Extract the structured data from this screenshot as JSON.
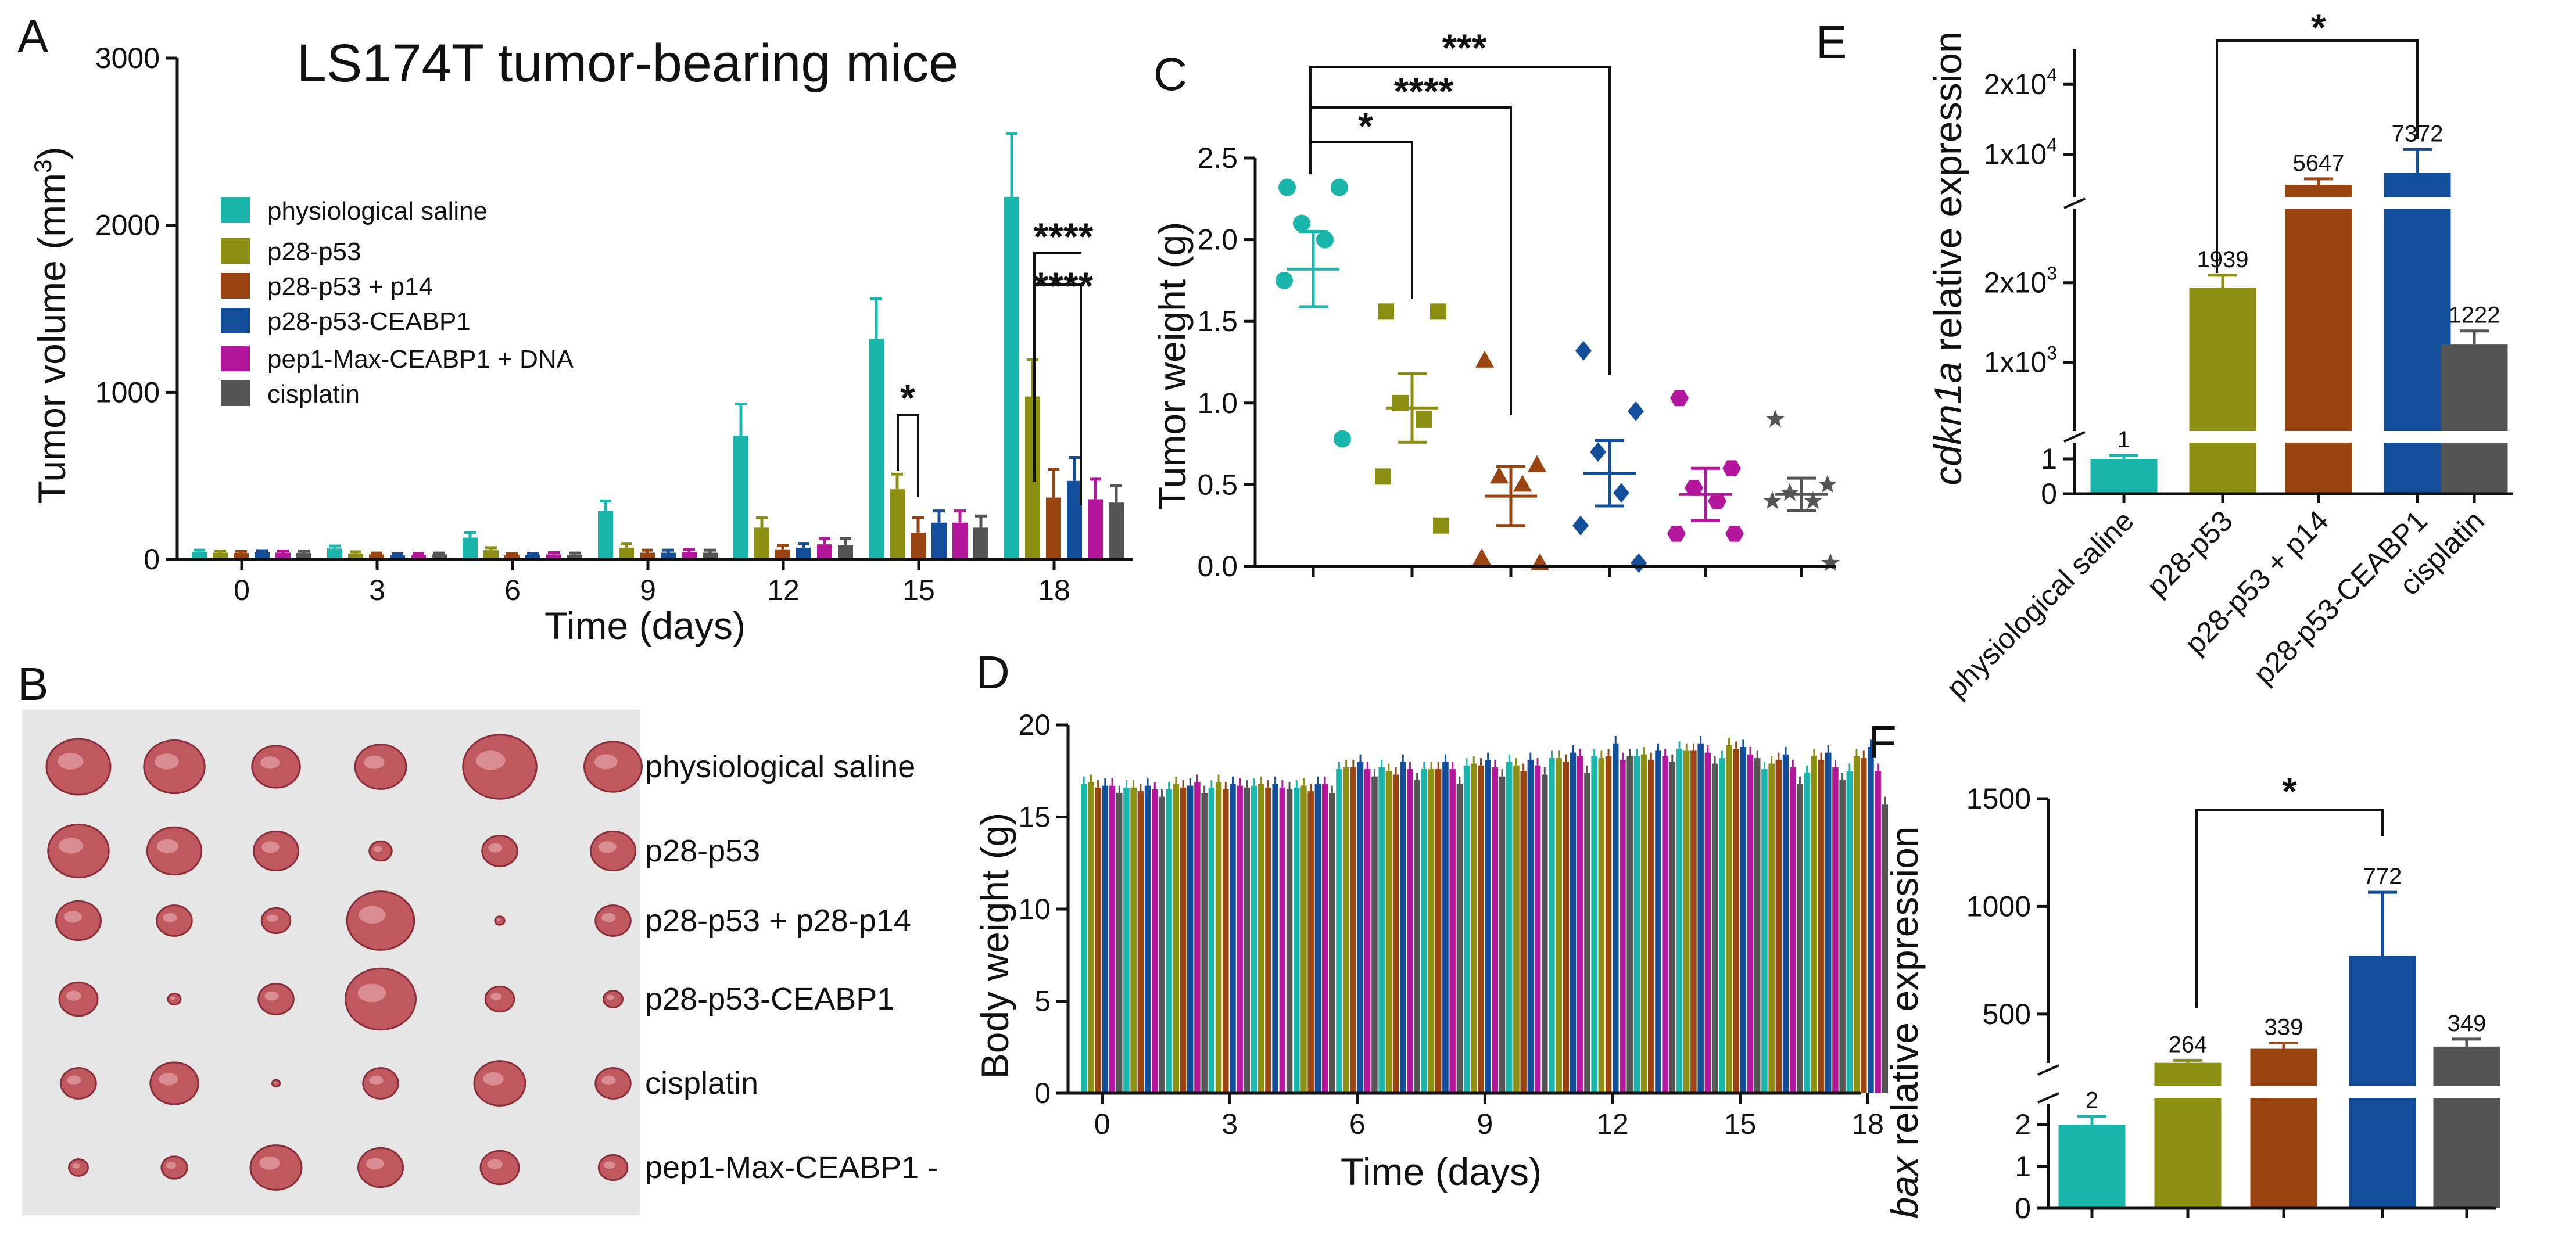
{
  "colors": {
    "saline": "#1ab6ab",
    "p28p53": "#8c8f12",
    "p28p53p14": "#9a4412",
    "ceabp1": "#124e9a",
    "pep1": "#b4169c",
    "cisplatin": "#555555"
  },
  "chart_data": [
    {
      "panel": "A",
      "type": "bar",
      "title": "LS174T tumor-bearing mice",
      "xlabel": "Time (days)",
      "ylabel": "Tumor volume (mm",
      "ylabel_sup": "3",
      "ylabel_tail": ")",
      "ylim": [
        0,
        3000
      ],
      "yticks": [
        "0",
        "1000",
        "2000",
        "3000"
      ],
      "categories": [
        "0",
        "3",
        "6",
        "9",
        "12",
        "15",
        "18"
      ],
      "series": [
        {
          "name": "physiological saline",
          "color_key": "saline",
          "values": [
            45,
            65,
            130,
            290,
            740,
            1320,
            2170
          ],
          "errors": [
            10,
            15,
            30,
            60,
            190,
            240,
            380
          ]
        },
        {
          "name": "p28-p53",
          "color_key": "p28p53",
          "values": [
            40,
            35,
            55,
            70,
            190,
            420,
            975
          ],
          "errors": [
            10,
            10,
            15,
            25,
            60,
            90,
            220
          ]
        },
        {
          "name": "p28-p53 + p14",
          "color_key": "p28p53p14",
          "values": [
            38,
            30,
            25,
            40,
            60,
            160,
            370
          ],
          "errors": [
            10,
            8,
            10,
            15,
            25,
            90,
            170
          ]
        },
        {
          "name": "p28-p53-CEABP1",
          "color_key": "ceabp1",
          "values": [
            42,
            25,
            25,
            40,
            70,
            220,
            470
          ],
          "errors": [
            10,
            8,
            10,
            15,
            25,
            70,
            140
          ]
        },
        {
          "name": "pep1-Max-CEABP1 + DNA",
          "color_key": "pep1",
          "values": [
            40,
            28,
            30,
            45,
            90,
            220,
            360
          ],
          "errors": [
            10,
            8,
            10,
            15,
            35,
            70,
            120
          ]
        },
        {
          "name": "cisplatin",
          "color_key": "cisplatin",
          "values": [
            38,
            30,
            28,
            40,
            85,
            190,
            340
          ],
          "errors": [
            10,
            8,
            10,
            15,
            40,
            70,
            100
          ]
        }
      ],
      "significance": [
        "*",
        "****",
        "****"
      ]
    },
    {
      "panel": "C",
      "type": "scatter",
      "ylabel": "Tumor weight (g)",
      "ylim": [
        0,
        2.5
      ],
      "yticks": [
        "0.0",
        "0.5",
        "1.0",
        "1.5",
        "2.0",
        "2.5"
      ],
      "groups": [
        {
          "name": "physiological saline",
          "color_key": "saline",
          "marker": "circle",
          "points": [
            2.32,
            2.32,
            2.1,
            2.0,
            1.75,
            0.78
          ],
          "mean": 1.82,
          "sem": 0.23
        },
        {
          "name": "p28-p53",
          "color_key": "p28p53",
          "marker": "square",
          "points": [
            1.56,
            1.56,
            1.0,
            0.9,
            0.55,
            0.25
          ],
          "mean": 0.97,
          "sem": 0.21
        },
        {
          "name": "p28-p53 + p14",
          "color_key": "p28p53p14",
          "marker": "triangle",
          "points": [
            1.26,
            0.62,
            0.55,
            0.5,
            0.05,
            0.02
          ],
          "mean": 0.43,
          "sem": 0.18
        },
        {
          "name": "p28-p53-CEABP1",
          "color_key": "ceabp1",
          "marker": "diamond",
          "points": [
            1.32,
            0.95,
            0.7,
            0.45,
            0.25,
            0.02
          ],
          "mean": 0.57,
          "sem": 0.2
        },
        {
          "name": "pep1-Max-CEABP1 + DNA",
          "color_key": "pep1",
          "marker": "hexagon",
          "points": [
            1.03,
            0.6,
            0.48,
            0.4,
            0.2,
            0.2
          ],
          "mean": 0.44,
          "sem": 0.16
        },
        {
          "name": "cisplatin",
          "color_key": "cisplatin",
          "marker": "star",
          "points": [
            0.9,
            0.5,
            0.45,
            0.4,
            0.4,
            0.02
          ],
          "mean": 0.44,
          "sem": 0.1
        }
      ],
      "significance": [
        "*",
        "****",
        "***"
      ]
    },
    {
      "panel": "D",
      "type": "bar",
      "xlabel": "Time (days)",
      "ylabel": "Body weight (g)",
      "ylim": [
        0,
        20
      ],
      "yticks": [
        "0",
        "5",
        "10",
        "15",
        "20"
      ],
      "categories": [
        "0",
        "1",
        "2",
        "3",
        "4",
        "5",
        "6",
        "7",
        "8",
        "9",
        "10",
        "11",
        "12",
        "13",
        "14",
        "15",
        "16",
        "17",
        "18"
      ],
      "tick_labels": [
        "0",
        "3",
        "6",
        "9",
        "12",
        "15",
        "18"
      ],
      "series": [
        {
          "name": "physiological saline",
          "color_key": "saline",
          "values": [
            16.8,
            16.6,
            16.5,
            16.6,
            16.7,
            16.6,
            17.6,
            17.7,
            17.6,
            17.8,
            18.0,
            18.2,
            18.3,
            18.3,
            18.7,
            18.2,
            17.6,
            17.4,
            17.5
          ]
        },
        {
          "name": "p28-p53",
          "color_key": "p28p53",
          "values": [
            16.9,
            16.6,
            16.8,
            16.9,
            16.8,
            16.7,
            17.7,
            17.5,
            17.6,
            17.9,
            17.8,
            18.2,
            18.2,
            18.4,
            18.6,
            18.9,
            17.9,
            18.3,
            18.3
          ]
        },
        {
          "name": "p28-p53 + p14",
          "color_key": "p28p53p14",
          "values": [
            16.6,
            16.4,
            16.6,
            16.5,
            16.6,
            16.4,
            17.7,
            17.3,
            17.6,
            17.8,
            17.5,
            18.0,
            18.3,
            18.1,
            18.6,
            18.7,
            18.1,
            18.1,
            18.2
          ]
        },
        {
          "name": "p28-p53-CEABP1",
          "color_key": "ceabp1",
          "values": [
            16.7,
            16.7,
            16.7,
            16.8,
            16.8,
            16.8,
            18.0,
            18.0,
            18.0,
            18.1,
            18.1,
            18.5,
            19.0,
            18.6,
            19.0,
            18.8,
            18.4,
            18.5,
            18.8
          ]
        },
        {
          "name": "pep1-Max-CEABP1 + DNA",
          "color_key": "pep1",
          "values": [
            16.7,
            16.5,
            16.9,
            16.7,
            16.6,
            16.8,
            17.6,
            17.6,
            17.6,
            17.7,
            17.8,
            18.3,
            18.1,
            18.3,
            18.5,
            18.4,
            17.7,
            17.7,
            17.5
          ]
        },
        {
          "name": "cisplatin",
          "color_key": "cisplatin",
          "values": [
            16.3,
            16.1,
            16.3,
            16.6,
            16.5,
            16.3,
            17.2,
            17.0,
            16.8,
            17.2,
            17.3,
            17.4,
            18.3,
            18.0,
            17.9,
            18.2,
            16.8,
            17.0,
            15.7
          ]
        }
      ]
    },
    {
      "panel": "E",
      "type": "bar",
      "ylabel_italic": "cdkn1a",
      "ylabel_rest": " relative expression",
      "categories": [
        "physiological saline",
        "p28-p53",
        "p28-p53 + p14",
        "p28-p53-CEABP1",
        "cisplatin"
      ],
      "values": [
        1,
        1939,
        5647,
        7372,
        1222
      ],
      "value_labels": [
        "1",
        "1939",
        "5647",
        "7372",
        "1222"
      ],
      "color_keys": [
        "saline",
        "p28p53",
        "p28p53p14",
        "ceabp1",
        "cisplatin"
      ],
      "yticks": [
        "0",
        "1",
        "1x10",
        "2x10",
        "1x10",
        "2x10"
      ],
      "ytick_sups": [
        "",
        "",
        "3",
        "3",
        "4",
        "4"
      ],
      "y_axis_breaks": true,
      "significance": [
        "*"
      ]
    },
    {
      "panel": "F",
      "type": "bar",
      "ylabel_italic": "bax",
      "ylabel_rest": " relative expression",
      "categories": [
        "physiological saline",
        "p28-p53",
        "p28-p53 + p14",
        "p28-p53-CEABP1",
        "cisplatin"
      ],
      "values": [
        2,
        264,
        339,
        772,
        349
      ],
      "value_labels": [
        "2",
        "264",
        "339",
        "772",
        "349"
      ],
      "color_keys": [
        "saline",
        "p28p53",
        "p28p53p14",
        "ceabp1",
        "cisplatin"
      ],
      "yticks": [
        "0",
        "1",
        "2",
        "500",
        "1000",
        "1500"
      ],
      "y_axis_breaks": true,
      "significance": [
        "*"
      ]
    }
  ],
  "panel_b": {
    "letter": "B",
    "row_labels": [
      "physiological saline",
      "p28-p53",
      "p28-p53 + p28-p14",
      "p28-p53-CEABP1",
      "cisplatin",
      "pep1-Max-CEABP1 -"
    ],
    "tumor_sizes": [
      [
        1.0,
        0.95,
        0.75,
        0.8,
        1.15,
        0.9
      ],
      [
        0.95,
        0.85,
        0.7,
        0.35,
        0.55,
        0.7
      ],
      [
        0.7,
        0.55,
        0.45,
        1.05,
        0.15,
        0.55
      ],
      [
        0.6,
        0.2,
        0.55,
        1.1,
        0.45,
        0.3
      ],
      [
        0.55,
        0.75,
        0.12,
        0.55,
        0.8,
        0.55
      ],
      [
        0.3,
        0.4,
        0.8,
        0.7,
        0.6,
        0.45
      ]
    ]
  }
}
